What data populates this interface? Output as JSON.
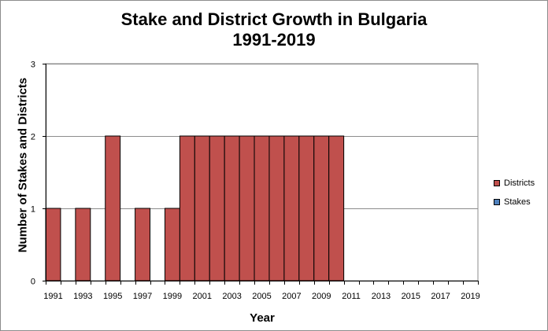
{
  "chart_data": {
    "type": "bar",
    "title": [
      "Stake and District Growth in Bulgaria",
      "1991-2019"
    ],
    "xlabel": "Year",
    "ylabel": "Number of Stakes and Districts",
    "ylim": [
      0,
      3
    ],
    "yticks": [
      "0",
      "1",
      "2",
      "3"
    ],
    "xtick_labels": [
      "1991",
      "1993",
      "1995",
      "1997",
      "1999",
      "2001",
      "2003",
      "2005",
      "2007",
      "2009",
      "2011",
      "2013",
      "2015",
      "2017",
      "2019"
    ],
    "categories": [
      "1991",
      "1992",
      "1993",
      "1994",
      "1995",
      "1996",
      "1997",
      "1998",
      "1999",
      "2000",
      "2001",
      "2002",
      "2003",
      "2004",
      "2005",
      "2006",
      "2007",
      "2008",
      "2009",
      "2010",
      "2011",
      "2012",
      "2013",
      "2014",
      "2015",
      "2016",
      "2017",
      "2018",
      "2019"
    ],
    "series": [
      {
        "name": "Districts",
        "color": "#c0504d",
        "values": [
          1,
          0,
          1,
          0,
          2,
          0,
          1,
          0,
          1,
          2,
          2,
          2,
          2,
          2,
          2,
          2,
          2,
          2,
          2,
          2,
          0,
          0,
          0,
          0,
          0,
          0,
          0,
          0,
          0
        ]
      },
      {
        "name": "Stakes",
        "color": "#4f81bd",
        "values": [
          0,
          0,
          0,
          0,
          0,
          0,
          0,
          0,
          0,
          0,
          0,
          0,
          0,
          0,
          0,
          0,
          0,
          0,
          0,
          0,
          0,
          0,
          0,
          0,
          0,
          0,
          0,
          0,
          0
        ]
      }
    ],
    "grid": true,
    "legend_position": "right"
  }
}
